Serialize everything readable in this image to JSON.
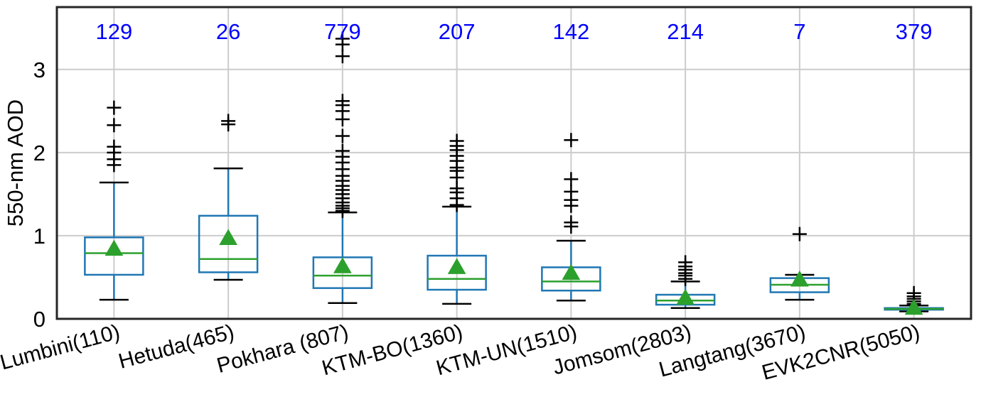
{
  "chart_data": {
    "type": "box",
    "title": "",
    "xlabel": "",
    "ylabel": "550-nm AOD",
    "ylim": [
      0,
      3.75
    ],
    "yticks": [
      "0",
      "1",
      "2",
      "3"
    ],
    "grid": true,
    "categories": [
      "Lumbini(110)",
      "Hetuda(465)",
      "Pokhara (807)",
      "KTM-BO(1360)",
      "KTM-UN(1510)",
      "Jomsom(2803)",
      "Langtang(3670)",
      "EVK2CNR(5050)"
    ],
    "counts": [
      "129",
      "26",
      "779",
      "207",
      "142",
      "214",
      "7",
      "379"
    ],
    "colors": {
      "box": "#1f77b4",
      "median": "#2ca02c",
      "mean": "#2ca02c",
      "outlier": "#000000",
      "count": "#0000ff"
    },
    "boxes": [
      {
        "whisker_low": 0.23,
        "q1": 0.53,
        "median": 0.79,
        "q3": 0.98,
        "whisker_high": 1.64,
        "mean": 0.84,
        "outliers": [
          1.85,
          1.92,
          2.0,
          2.07,
          2.33,
          2.54
        ]
      },
      {
        "whisker_low": 0.47,
        "q1": 0.56,
        "median": 0.72,
        "q3": 1.24,
        "whisker_high": 1.81,
        "mean": 0.97,
        "outliers": [
          2.34,
          2.38
        ]
      },
      {
        "whisker_low": 0.19,
        "q1": 0.37,
        "median": 0.52,
        "q3": 0.74,
        "whisker_high": 1.28,
        "mean": 0.63,
        "outliers": [
          1.3,
          1.33,
          1.36,
          1.4,
          1.45,
          1.5,
          1.55,
          1.6,
          1.66,
          1.72,
          1.8,
          1.88,
          1.95,
          2.02,
          2.2,
          2.4,
          2.5,
          2.57,
          2.62,
          3.16,
          3.3,
          3.37
        ]
      },
      {
        "whisker_low": 0.18,
        "q1": 0.35,
        "median": 0.48,
        "q3": 0.76,
        "whisker_high": 1.35,
        "mean": 0.62,
        "outliers": [
          1.37,
          1.45,
          1.52,
          1.57,
          1.7,
          1.78,
          1.82,
          1.9,
          1.96,
          2.03,
          2.08,
          2.14
        ]
      },
      {
        "whisker_low": 0.22,
        "q1": 0.34,
        "median": 0.45,
        "q3": 0.62,
        "whisker_high": 0.94,
        "mean": 0.55,
        "outliers": [
          1.11,
          1.16,
          1.36,
          1.43,
          1.53,
          1.68,
          2.15
        ]
      },
      {
        "whisker_low": 0.13,
        "q1": 0.17,
        "median": 0.22,
        "q3": 0.29,
        "whisker_high": 0.45,
        "mean": 0.25,
        "outliers": [
          0.48,
          0.52,
          0.55,
          0.59,
          0.63,
          0.68
        ]
      },
      {
        "whisker_low": 0.23,
        "q1": 0.32,
        "median": 0.41,
        "q3": 0.49,
        "whisker_high": 0.53,
        "mean": 0.47,
        "outliers": [
          1.02
        ]
      },
      {
        "whisker_low": 0.09,
        "q1": 0.11,
        "median": 0.12,
        "q3": 0.13,
        "whisker_high": 0.16,
        "mean": 0.13,
        "outliers": [
          0.18,
          0.21,
          0.24,
          0.27,
          0.31
        ]
      }
    ]
  }
}
